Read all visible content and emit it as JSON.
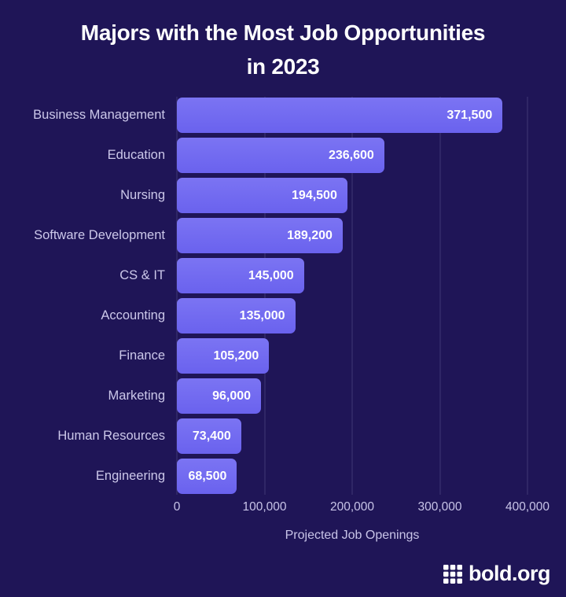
{
  "title": {
    "line1": "Majors with the Most Job Opportunities",
    "line2": "in 2023"
  },
  "chart_data": {
    "type": "bar",
    "orientation": "horizontal",
    "title": "Majors with the Most Job Opportunities in 2023",
    "categories": [
      "Business Management",
      "Education",
      "Nursing",
      "Software Development",
      "CS & IT",
      "Accounting",
      "Finance",
      "Marketing",
      "Human Resources",
      "Engineering"
    ],
    "values": [
      371500,
      236600,
      194500,
      189200,
      145000,
      135000,
      105200,
      96000,
      73400,
      68500
    ],
    "value_labels": [
      "371,500",
      "236,600",
      "194,500",
      "189,200",
      "145,000",
      "135,000",
      "105,200",
      "96,000",
      "73,400",
      "68,500"
    ],
    "xlabel": "Projected Job Openings",
    "xlim": [
      0,
      400000
    ],
    "xticks": [
      0,
      100000,
      200000,
      300000,
      400000
    ],
    "xtick_labels": [
      "0",
      "100,000",
      "200,000",
      "300,000",
      "400,000"
    ],
    "grid": "vertical",
    "legend": "none"
  },
  "colors": {
    "background": "#1f1557",
    "bar_top": "#7b74f3",
    "bar_bottom": "#6a62ee",
    "title_text": "#ffffff",
    "category_label": "#ccc8ea",
    "value_label": "#ffffff",
    "tick_label": "#c8c4e8",
    "gridline": "rgba(197,191,240,0.20)"
  },
  "footer": {
    "icon": "bold-grid-icon",
    "brand": "bold.org"
  }
}
